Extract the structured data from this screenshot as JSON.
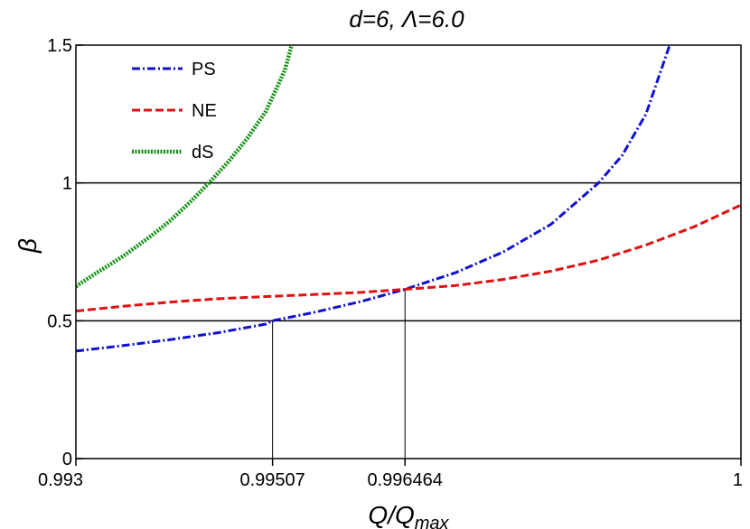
{
  "chart_data": {
    "type": "line",
    "title": "d=6, Λ=6.0",
    "xlabel": "Q/Q",
    "xlabel_sub": "max",
    "ylabel": "β",
    "xlim": [
      0.993,
      1.0
    ],
    "ylim": [
      0,
      1.5
    ],
    "x_ticks": [
      0.993,
      0.99507,
      0.996464,
      1.0
    ],
    "x_tick_labels": [
      "0.993",
      "0.99507",
      "0.996464",
      "1"
    ],
    "y_ticks": [
      0,
      0.5,
      1.0,
      1.5
    ],
    "y_tick_labels": [
      "0",
      "0.5",
      "1",
      "1.5"
    ],
    "hlines": [
      0.5,
      1.0
    ],
    "vlines": [
      {
        "x": 0.99507,
        "y_top": 0.5
      },
      {
        "x": 0.996464,
        "y_top": 0.614
      }
    ],
    "legend_position": "top-left",
    "series": [
      {
        "name": "PS",
        "color": "#1010d0",
        "dash": "dashdot",
        "x": [
          0.993,
          0.9935,
          0.994,
          0.9945,
          0.995,
          0.99507,
          0.9955,
          0.996,
          0.996464,
          0.997,
          0.9975,
          0.998,
          0.9985,
          0.99875,
          0.999,
          0.99925
        ],
        "y": [
          0.39,
          0.41,
          0.432,
          0.457,
          0.488,
          0.5,
          0.53,
          0.57,
          0.614,
          0.675,
          0.75,
          0.85,
          1.0,
          1.1,
          1.25,
          1.5
        ]
      },
      {
        "name": "NE",
        "color": "#e01010",
        "dash": "dashed",
        "x": [
          0.993,
          0.9935,
          0.994,
          0.9945,
          0.995,
          0.9955,
          0.996,
          0.996464,
          0.997,
          0.9975,
          0.998,
          0.9985,
          0.999,
          0.9995,
          1.0
        ],
        "y": [
          0.535,
          0.553,
          0.568,
          0.58,
          0.588,
          0.595,
          0.603,
          0.614,
          0.628,
          0.65,
          0.68,
          0.72,
          0.775,
          0.84,
          0.92
        ]
      },
      {
        "name": "dS",
        "color": "#109010",
        "dash": "dotted",
        "x": [
          0.993,
          0.9932,
          0.9935,
          0.9938,
          0.994,
          0.9942,
          0.9944,
          0.9946,
          0.9948,
          0.995,
          0.9952,
          0.99527
        ],
        "y": [
          0.625,
          0.67,
          0.735,
          0.81,
          0.865,
          0.93,
          1.0,
          1.075,
          1.16,
          1.26,
          1.41,
          1.5
        ]
      }
    ]
  }
}
